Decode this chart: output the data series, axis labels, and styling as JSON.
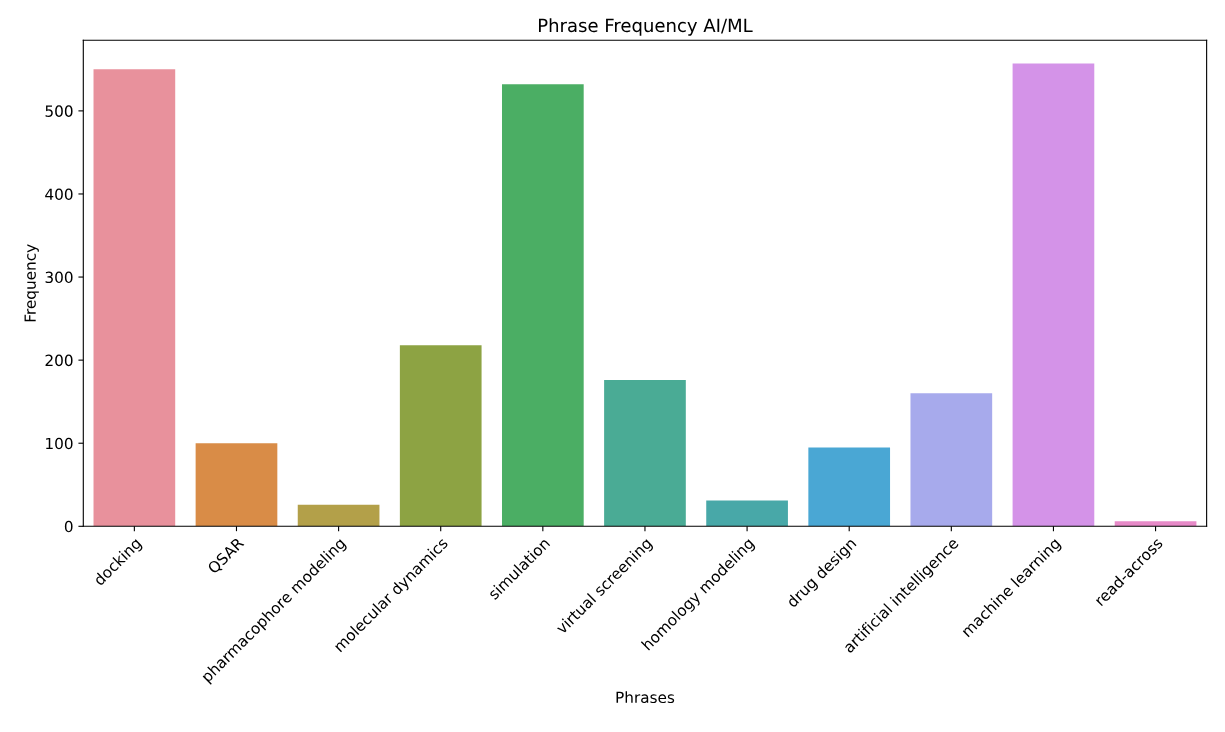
{
  "chart_data": {
    "type": "bar",
    "title": "Phrase Frequency AI/ML",
    "xlabel": "Phrases",
    "ylabel": "Frequency",
    "categories": [
      "docking",
      "QSAR",
      "pharmacophore modeling",
      "molecular dynamics",
      "simulation",
      "virtual screening",
      "homology modeling",
      "drug design",
      "artificial intelligence",
      "machine learning",
      "read-across"
    ],
    "values": [
      550,
      100,
      26,
      218,
      532,
      176,
      31,
      95,
      160,
      557,
      6
    ],
    "colors": [
      "#e8919c",
      "#d98c47",
      "#b3a049",
      "#8da343",
      "#4bae64",
      "#4aab95",
      "#48a8a8",
      "#4aa7d4",
      "#a7aaec",
      "#d493e8",
      "#e78ac8"
    ],
    "ylim": [
      0,
      585
    ],
    "yticks": [
      0,
      100,
      200,
      300,
      400,
      500
    ],
    "grid": false
  }
}
